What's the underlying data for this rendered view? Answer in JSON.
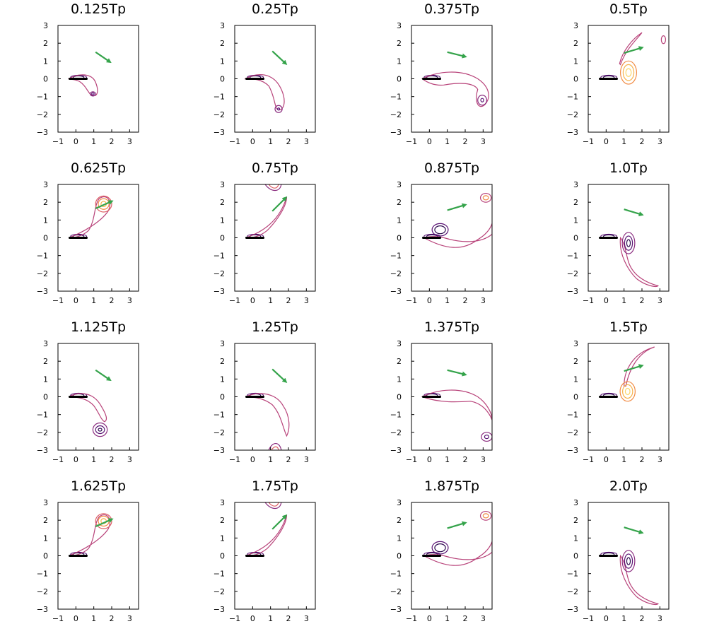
{
  "figure": {
    "palette": [
      "#2d0a4e",
      "#5b1475",
      "#8a2b7e",
      "#b8437a",
      "#de5f64",
      "#f18c45",
      "#f7b24a",
      "#fbd66a"
    ],
    "arrow_color": "#34a34a",
    "body_color": "#000000"
  },
  "chart_data": [
    {
      "type": "contour",
      "title": "0.125Tp",
      "xlim": [
        -1,
        3.5
      ],
      "ylim": [
        -3,
        3
      ],
      "xticks": [
        "−1",
        "0",
        "1",
        "2",
        "3"
      ],
      "yticks": [
        "3",
        "2",
        "1",
        "0",
        "−1",
        "−2",
        "−3"
      ],
      "arrow": {
        "from": [
          1.1,
          1.5
        ],
        "to": [
          1.9,
          0.95
        ]
      },
      "state": "a"
    },
    {
      "type": "contour",
      "title": "0.25Tp",
      "xlim": [
        -1,
        3.5
      ],
      "ylim": [
        -3,
        3
      ],
      "xticks": [
        "−1",
        "0",
        "1",
        "2",
        "3"
      ],
      "yticks": [
        "3",
        "2",
        "1",
        "0",
        "−1",
        "−2",
        "−3"
      ],
      "arrow": {
        "from": [
          1.1,
          1.55
        ],
        "to": [
          1.85,
          0.85
        ]
      },
      "state": "b"
    },
    {
      "type": "contour",
      "title": "0.375Tp",
      "xlim": [
        -1,
        3.5
      ],
      "ylim": [
        -3,
        3
      ],
      "xticks": [
        "−1",
        "0",
        "1",
        "2",
        "3"
      ],
      "yticks": [
        "3",
        "2",
        "1",
        "0",
        "−1",
        "−2",
        "−3"
      ],
      "arrow": {
        "from": [
          1.0,
          1.5
        ],
        "to": [
          2.0,
          1.25
        ]
      },
      "state": "c"
    },
    {
      "type": "contour",
      "title": "0.5Tp",
      "xlim": [
        -1,
        3.5
      ],
      "ylim": [
        -3,
        3
      ],
      "xticks": [
        "−1",
        "0",
        "1",
        "2",
        "3"
      ],
      "yticks": [
        "3",
        "2",
        "1",
        "0",
        "−1",
        "−2",
        "−3"
      ],
      "arrow": {
        "from": [
          1.0,
          1.45
        ],
        "to": [
          2.0,
          1.75
        ]
      },
      "state": "d"
    },
    {
      "type": "contour",
      "title": "0.625Tp",
      "xlim": [
        -1,
        3.5
      ],
      "ylim": [
        -3,
        3
      ],
      "xticks": [
        "−1",
        "0",
        "1",
        "2",
        "3"
      ],
      "yticks": [
        "3",
        "2",
        "1",
        "0",
        "−1",
        "−2",
        "−3"
      ],
      "arrow": {
        "from": [
          1.1,
          1.65
        ],
        "to": [
          2.0,
          2.05
        ]
      },
      "state": "e"
    },
    {
      "type": "contour",
      "title": "0.75Tp",
      "xlim": [
        -1,
        3.5
      ],
      "ylim": [
        -3,
        3
      ],
      "xticks": [
        "−1",
        "0",
        "1",
        "2",
        "3"
      ],
      "yticks": [
        "3",
        "2",
        "1",
        "0",
        "−1",
        "−2",
        "−3"
      ],
      "arrow": {
        "from": [
          1.1,
          1.5
        ],
        "to": [
          1.85,
          2.25
        ]
      },
      "state": "f"
    },
    {
      "type": "contour",
      "title": "0.875Tp",
      "xlim": [
        -1,
        3.5
      ],
      "ylim": [
        -3,
        3
      ],
      "xticks": [
        "−1",
        "0",
        "1",
        "2",
        "3"
      ],
      "yticks": [
        "3",
        "2",
        "1",
        "0",
        "−1",
        "−2",
        "−3"
      ],
      "arrow": {
        "from": [
          1.0,
          1.55
        ],
        "to": [
          2.0,
          1.85
        ]
      },
      "state": "g"
    },
    {
      "type": "contour",
      "title": "1.0Tp",
      "xlim": [
        -1,
        3.5
      ],
      "ylim": [
        -3,
        3
      ],
      "xticks": [
        "−1",
        "0",
        "1",
        "2",
        "3"
      ],
      "yticks": [
        "3",
        "2",
        "1",
        "0",
        "−1",
        "−2",
        "−3"
      ],
      "arrow": {
        "from": [
          1.0,
          1.6
        ],
        "to": [
          2.0,
          1.3
        ]
      },
      "state": "h"
    },
    {
      "type": "contour",
      "title": "1.125Tp",
      "xlim": [
        -1,
        3.5
      ],
      "ylim": [
        -3,
        3
      ],
      "xticks": [
        "−1",
        "0",
        "1",
        "2",
        "3"
      ],
      "yticks": [
        "3",
        "2",
        "1",
        "0",
        "−1",
        "−2",
        "−3"
      ],
      "arrow": {
        "from": [
          1.1,
          1.5
        ],
        "to": [
          1.9,
          0.95
        ]
      },
      "state": "i"
    },
    {
      "type": "contour",
      "title": "1.25Tp",
      "xlim": [
        -1,
        3.5
      ],
      "ylim": [
        -3,
        3
      ],
      "xticks": [
        "−1",
        "0",
        "1",
        "2",
        "3"
      ],
      "yticks": [
        "3",
        "2",
        "1",
        "0",
        "−1",
        "−2",
        "−3"
      ],
      "arrow": {
        "from": [
          1.1,
          1.55
        ],
        "to": [
          1.85,
          0.85
        ]
      },
      "state": "j"
    },
    {
      "type": "contour",
      "title": "1.375Tp",
      "xlim": [
        -1,
        3.5
      ],
      "ylim": [
        -3,
        3
      ],
      "xticks": [
        "−1",
        "0",
        "1",
        "2",
        "3"
      ],
      "yticks": [
        "3",
        "2",
        "1",
        "0",
        "−1",
        "−2",
        "−3"
      ],
      "arrow": {
        "from": [
          1.0,
          1.5
        ],
        "to": [
          2.0,
          1.25
        ]
      },
      "state": "k"
    },
    {
      "type": "contour",
      "title": "1.5Tp",
      "xlim": [
        -1,
        3.5
      ],
      "ylim": [
        -3,
        3
      ],
      "xticks": [
        "−1",
        "0",
        "1",
        "2",
        "3"
      ],
      "yticks": [
        "3",
        "2",
        "1",
        "0",
        "−1",
        "−2",
        "−3"
      ],
      "arrow": {
        "from": [
          1.0,
          1.45
        ],
        "to": [
          2.0,
          1.75
        ]
      },
      "state": "l"
    },
    {
      "type": "contour",
      "title": "1.625Tp",
      "xlim": [
        -1,
        3.5
      ],
      "ylim": [
        -3,
        3
      ],
      "xticks": [
        "−1",
        "0",
        "1",
        "2",
        "3"
      ],
      "yticks": [
        "3",
        "2",
        "1",
        "0",
        "−1",
        "−2",
        "−3"
      ],
      "arrow": {
        "from": [
          1.1,
          1.65
        ],
        "to": [
          2.0,
          2.05
        ]
      },
      "state": "m"
    },
    {
      "type": "contour",
      "title": "1.75Tp",
      "xlim": [
        -1,
        3.5
      ],
      "ylim": [
        -3,
        3
      ],
      "xticks": [
        "−1",
        "0",
        "1",
        "2",
        "3"
      ],
      "yticks": [
        "3",
        "2",
        "1",
        "0",
        "−1",
        "−2",
        "−3"
      ],
      "arrow": {
        "from": [
          1.1,
          1.5
        ],
        "to": [
          1.85,
          2.25
        ]
      },
      "state": "n"
    },
    {
      "type": "contour",
      "title": "1.875Tp",
      "xlim": [
        -1,
        3.5
      ],
      "ylim": [
        -3,
        3
      ],
      "xticks": [
        "−1",
        "0",
        "1",
        "2",
        "3"
      ],
      "yticks": [
        "3",
        "2",
        "1",
        "0",
        "−1",
        "−2",
        "−3"
      ],
      "arrow": {
        "from": [
          1.0,
          1.55
        ],
        "to": [
          2.0,
          1.85
        ]
      },
      "state": "o"
    },
    {
      "type": "contour",
      "title": "2.0Tp",
      "xlim": [
        -1,
        3.5
      ],
      "ylim": [
        -3,
        3
      ],
      "xticks": [
        "−1",
        "0",
        "1",
        "2",
        "3"
      ],
      "yticks": [
        "3",
        "2",
        "1",
        "0",
        "−1",
        "−2",
        "−3"
      ],
      "arrow": {
        "from": [
          1.0,
          1.6
        ],
        "to": [
          2.0,
          1.3
        ]
      },
      "state": "p"
    }
  ]
}
